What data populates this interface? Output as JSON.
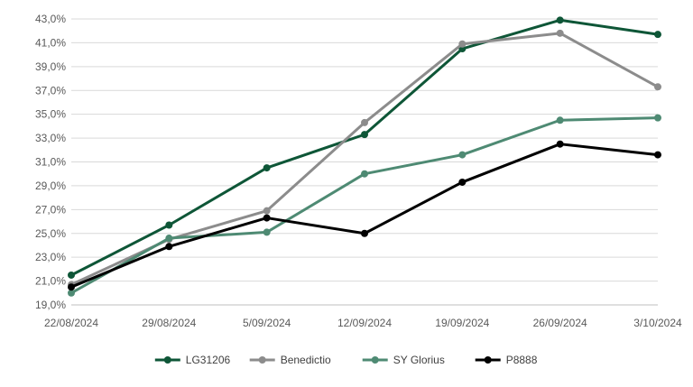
{
  "chart_data": {
    "type": "line",
    "title": "",
    "xlabel": "",
    "ylabel": "",
    "categories": [
      "22/08/2024",
      "29/08/2024",
      "5/09/2024",
      "12/09/2024",
      "19/09/2024",
      "26/09/2024",
      "3/10/2024"
    ],
    "ylim": [
      19.0,
      43.0
    ],
    "ytick_step": 2.0,
    "ytick_labels": [
      "19,0%",
      "21,0%",
      "23,0%",
      "25,0%",
      "27,0%",
      "29,0%",
      "31,0%",
      "33,0%",
      "35,0%",
      "37,0%",
      "39,0%",
      "41,0%",
      "43,0%"
    ],
    "grid": true,
    "legend_position": "bottom",
    "series": [
      {
        "name": "LG31206",
        "color": "#0E5637",
        "values": [
          21.5,
          25.7,
          30.5,
          33.3,
          40.5,
          42.9,
          41.7
        ]
      },
      {
        "name": "Benedictio",
        "color": "#8C8C8C",
        "values": [
          20.7,
          24.5,
          26.9,
          34.3,
          40.9,
          41.8,
          37.3
        ]
      },
      {
        "name": "SY Glorius",
        "color": "#4E8A73",
        "values": [
          20.0,
          24.6,
          25.1,
          30.0,
          31.6,
          34.5,
          34.7
        ]
      },
      {
        "name": "P8888",
        "color": "#000000",
        "values": [
          20.5,
          23.9,
          26.3,
          25.0,
          29.3,
          32.5,
          31.6
        ]
      }
    ]
  }
}
